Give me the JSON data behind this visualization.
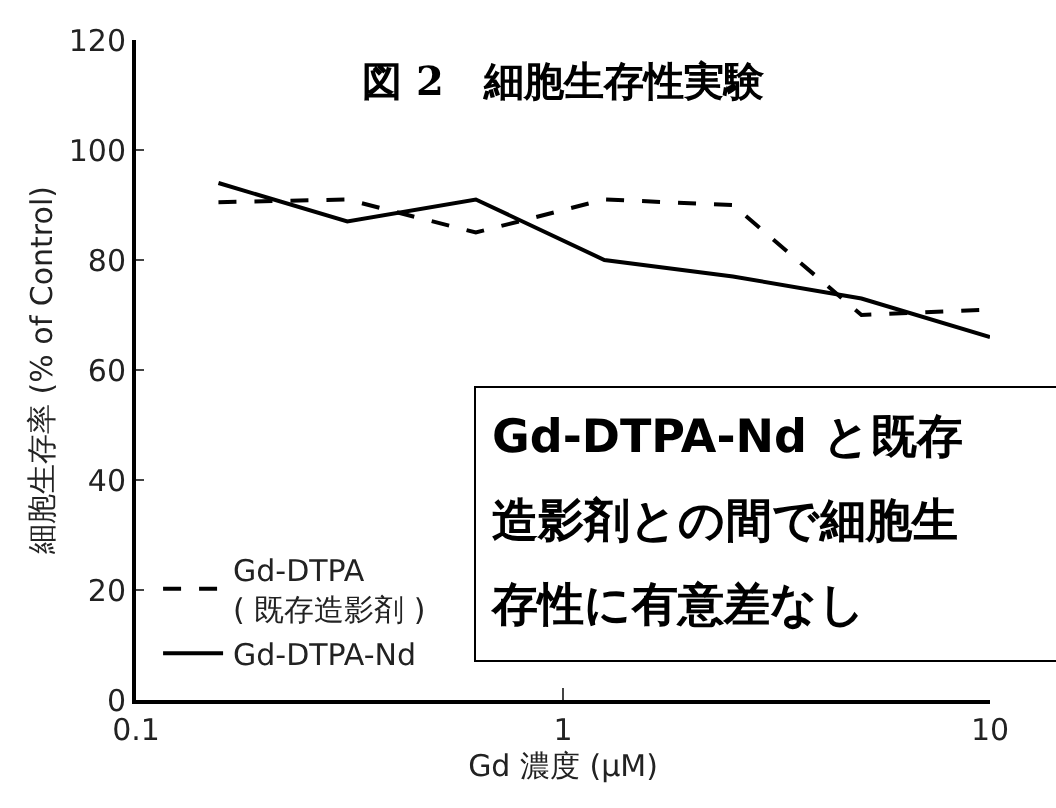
{
  "chart_data": {
    "type": "line",
    "title": "図 2　細胞生存性実験",
    "xlabel": "Gd 濃度 (μM)",
    "ylabel": "細胞生存率 (% of Control)",
    "x": [
      0.156,
      0.3125,
      0.625,
      1.25,
      2.5,
      5,
      10
    ],
    "series": [
      {
        "name": "Gd-DTPA\n( 既存造影剤 )",
        "color": "#000000",
        "line_style": "dashed",
        "values": [
          90.5,
          91,
          85,
          91,
          90,
          70,
          71
        ]
      },
      {
        "name": "Gd-DTPA-Nd",
        "color": "#000000",
        "line_style": "solid",
        "values": [
          94,
          87,
          91,
          80,
          77,
          73,
          66
        ]
      }
    ],
    "log": "x",
    "xlim": [
      0.1,
      10
    ],
    "xticks": [
      0.1,
      1,
      10
    ],
    "ylim": [
      0,
      120
    ],
    "yticks": [
      0,
      20,
      40,
      60,
      80,
      100,
      120
    ],
    "grid": false,
    "legend": "bottom left",
    "marker": "none",
    "annotations": [
      "Gd-DTPA-Nd と既存造影剤との間で細胞生存性に有意差なし"
    ]
  }
}
